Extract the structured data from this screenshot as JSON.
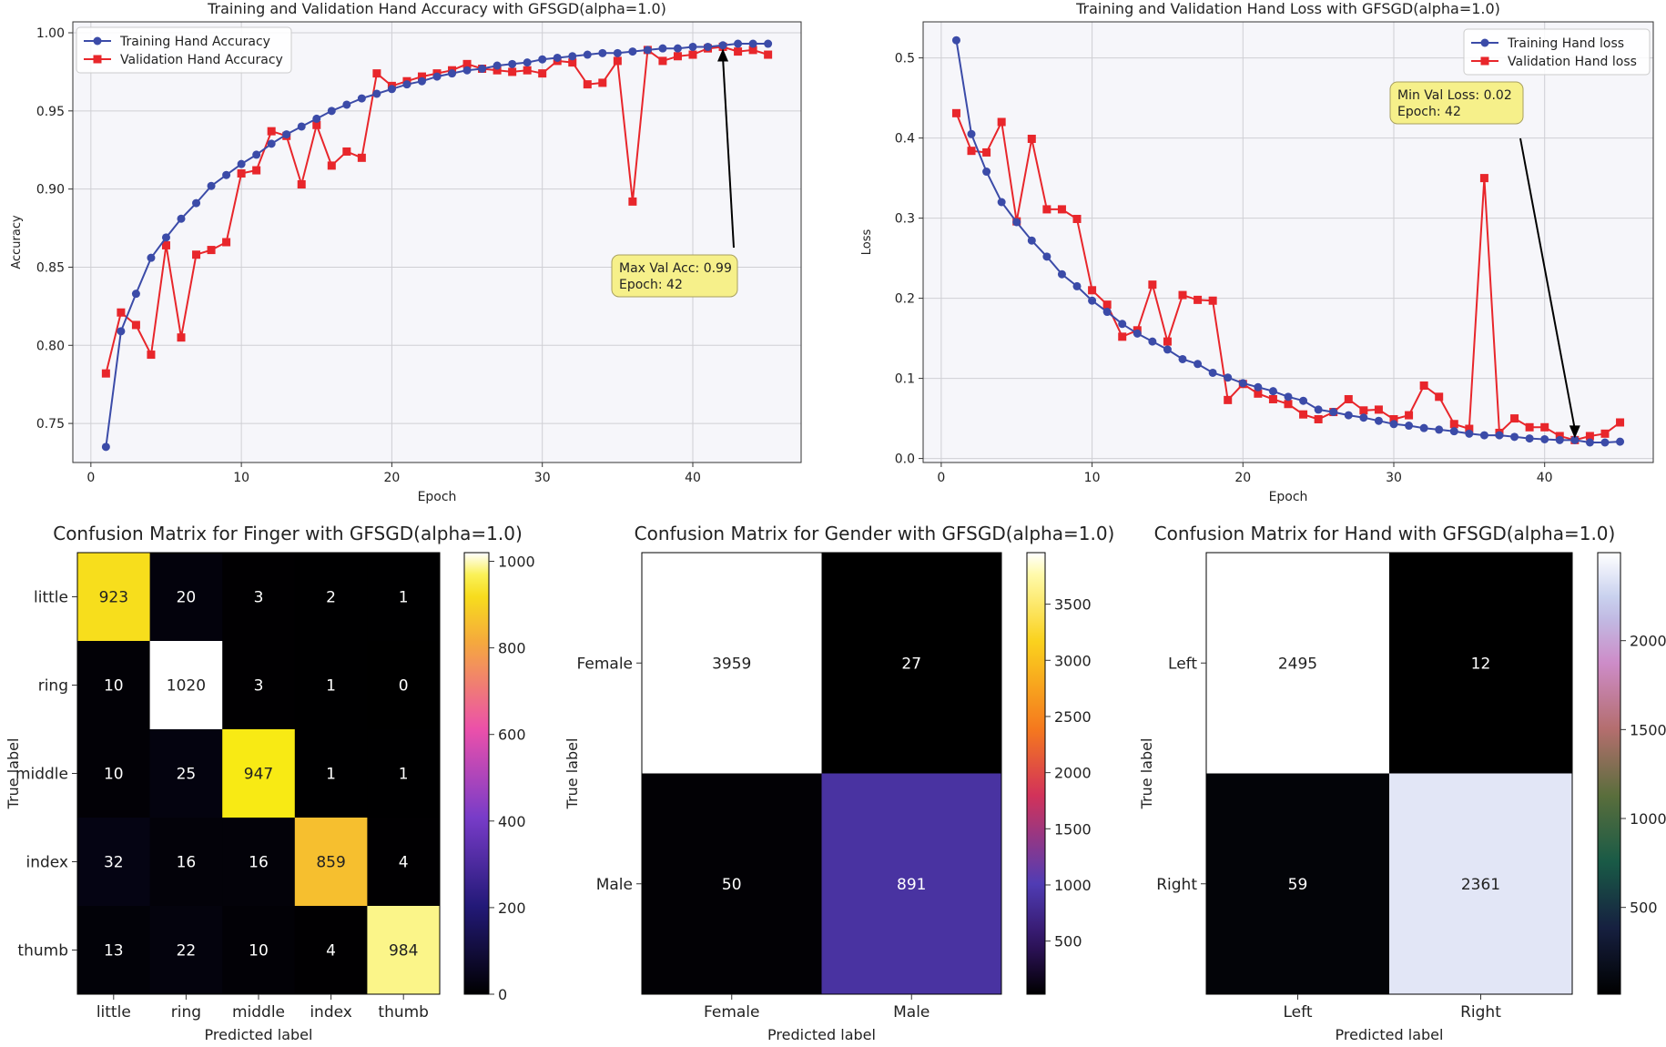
{
  "chart_data": [
    {
      "type": "line",
      "title": "Training and Validation Hand Accuracy with GFSGD(alpha=1.0)",
      "xlabel": "Epoch",
      "ylabel": "Accuracy",
      "xlim": [
        -1.2,
        47.2
      ],
      "ylim": [
        0.725,
        1.007
      ],
      "xticks": [
        0,
        10,
        20,
        30,
        40
      ],
      "yticks": [
        0.75,
        0.8,
        0.85,
        0.9,
        0.95,
        1.0
      ],
      "ytick_labels": [
        "0.75",
        "0.80",
        "0.85",
        "0.90",
        "0.95",
        "1.00"
      ],
      "grid": true,
      "legend": "top-left",
      "x": [
        1,
        2,
        3,
        4,
        5,
        6,
        7,
        8,
        9,
        10,
        11,
        12,
        13,
        14,
        15,
        16,
        17,
        18,
        19,
        20,
        21,
        22,
        23,
        24,
        25,
        26,
        27,
        28,
        29,
        30,
        31,
        32,
        33,
        34,
        35,
        36,
        37,
        38,
        39,
        40,
        41,
        42,
        43,
        44,
        45
      ],
      "series": [
        {
          "name": "Training Hand Accuracy",
          "color": "#3b4ba8",
          "marker": "circle",
          "values": [
            0.735,
            0.809,
            0.833,
            0.856,
            0.869,
            0.881,
            0.891,
            0.902,
            0.909,
            0.916,
            0.922,
            0.929,
            0.935,
            0.94,
            0.945,
            0.95,
            0.954,
            0.958,
            0.961,
            0.964,
            0.967,
            0.969,
            0.972,
            0.974,
            0.976,
            0.977,
            0.979,
            0.98,
            0.981,
            0.983,
            0.984,
            0.985,
            0.986,
            0.987,
            0.987,
            0.988,
            0.989,
            0.99,
            0.99,
            0.991,
            0.991,
            0.992,
            0.993,
            0.993,
            0.993
          ]
        },
        {
          "name": "Validation Hand Accuracy",
          "color": "#e8262b",
          "marker": "square",
          "values": [
            0.782,
            0.821,
            0.813,
            0.794,
            0.864,
            0.805,
            0.858,
            0.861,
            0.866,
            0.91,
            0.912,
            0.937,
            0.934,
            0.903,
            0.941,
            0.915,
            0.924,
            0.92,
            0.974,
            0.966,
            0.969,
            0.972,
            0.974,
            0.976,
            0.98,
            0.977,
            0.976,
            0.975,
            0.976,
            0.974,
            0.982,
            0.981,
            0.967,
            0.968,
            0.982,
            0.892,
            0.989,
            0.982,
            0.985,
            0.986,
            0.99,
            0.991,
            0.988,
            0.989,
            0.986
          ]
        }
      ],
      "annotation": {
        "line1": "Max Val Acc: 0.99",
        "line2": "Epoch: 42",
        "x": 42,
        "y": 0.991
      }
    },
    {
      "type": "line",
      "title": "Training and Validation Hand Loss with GFSGD(alpha=1.0)",
      "xlabel": "Epoch",
      "ylabel": "Loss",
      "xlim": [
        -1.2,
        47.2
      ],
      "ylim": [
        -0.005,
        0.545
      ],
      "xticks": [
        0,
        10,
        20,
        30,
        40
      ],
      "yticks": [
        0.0,
        0.1,
        0.2,
        0.3,
        0.4,
        0.5
      ],
      "ytick_labels": [
        "0.0",
        "0.1",
        "0.2",
        "0.3",
        "0.4",
        "0.5"
      ],
      "grid": true,
      "legend": "top-right",
      "x": [
        1,
        2,
        3,
        4,
        5,
        6,
        7,
        8,
        9,
        10,
        11,
        12,
        13,
        14,
        15,
        16,
        17,
        18,
        19,
        20,
        21,
        22,
        23,
        24,
        25,
        26,
        27,
        28,
        29,
        30,
        31,
        32,
        33,
        34,
        35,
        36,
        37,
        38,
        39,
        40,
        41,
        42,
        43,
        44,
        45
      ],
      "series": [
        {
          "name": "Training Hand loss",
          "color": "#3b4ba8",
          "marker": "circle",
          "values": [
            0.522,
            0.405,
            0.358,
            0.32,
            0.295,
            0.272,
            0.252,
            0.23,
            0.215,
            0.197,
            0.183,
            0.168,
            0.156,
            0.146,
            0.136,
            0.124,
            0.118,
            0.107,
            0.101,
            0.094,
            0.089,
            0.084,
            0.077,
            0.072,
            0.061,
            0.058,
            0.054,
            0.051,
            0.047,
            0.043,
            0.041,
            0.038,
            0.036,
            0.034,
            0.031,
            0.029,
            0.029,
            0.027,
            0.025,
            0.024,
            0.023,
            0.023,
            0.02,
            0.02,
            0.021
          ]
        },
        {
          "name": "Validation Hand loss",
          "color": "#e8262b",
          "marker": "square",
          "values": [
            0.431,
            0.384,
            0.382,
            0.42,
            0.296,
            0.399,
            0.311,
            0.311,
            0.299,
            0.21,
            0.192,
            0.152,
            0.16,
            0.217,
            0.146,
            0.204,
            0.198,
            0.197,
            0.073,
            0.093,
            0.081,
            0.074,
            0.068,
            0.055,
            0.049,
            0.058,
            0.074,
            0.06,
            0.061,
            0.049,
            0.054,
            0.091,
            0.077,
            0.043,
            0.037,
            0.35,
            0.032,
            0.05,
            0.039,
            0.039,
            0.028,
            0.023,
            0.028,
            0.031,
            0.045
          ]
        }
      ],
      "annotation": {
        "line1": "Min Val Loss: 0.02",
        "line2": "Epoch: 42",
        "x": 42,
        "y": 0.023
      }
    },
    {
      "type": "heatmap",
      "title": "Confusion Matrix for Finger with GFSGD(alpha=1.0)",
      "xlabel": "Predicted label",
      "ylabel": "True label",
      "labels": [
        "little",
        "ring",
        "middle",
        "index",
        "thumb"
      ],
      "matrix": [
        [
          923,
          20,
          3,
          2,
          1
        ],
        [
          10,
          1020,
          3,
          1,
          0
        ],
        [
          10,
          25,
          947,
          1,
          1
        ],
        [
          32,
          16,
          16,
          859,
          4
        ],
        [
          13,
          22,
          10,
          4,
          984
        ]
      ],
      "colormap": "plasma",
      "vmin": 0,
      "vmax": 1020,
      "colorbar_ticks": [
        0,
        200,
        400,
        600,
        800,
        1000
      ]
    },
    {
      "type": "heatmap",
      "title": "Confusion Matrix for Gender with GFSGD(alpha=1.0)",
      "xlabel": "Predicted label",
      "ylabel": "True label",
      "labels": [
        "Female",
        "Male"
      ],
      "matrix": [
        [
          3959,
          27
        ],
        [
          50,
          891
        ]
      ],
      "colormap": "inferno",
      "vmin": 27,
      "vmax": 3959,
      "colorbar_ticks": [
        500,
        1000,
        1500,
        2000,
        2500,
        3000,
        3500
      ]
    },
    {
      "type": "heatmap",
      "title": "Confusion Matrix for Hand with GFSGD(alpha=1.0)",
      "xlabel": "Predicted label",
      "ylabel": "True label",
      "labels": [
        "Left",
        "Right"
      ],
      "matrix": [
        [
          2495,
          12
        ],
        [
          59,
          2361
        ]
      ],
      "colormap": "cubehelix",
      "vmin": 12,
      "vmax": 2495,
      "colorbar_ticks": [
        500,
        1000,
        1500,
        2000
      ]
    }
  ]
}
